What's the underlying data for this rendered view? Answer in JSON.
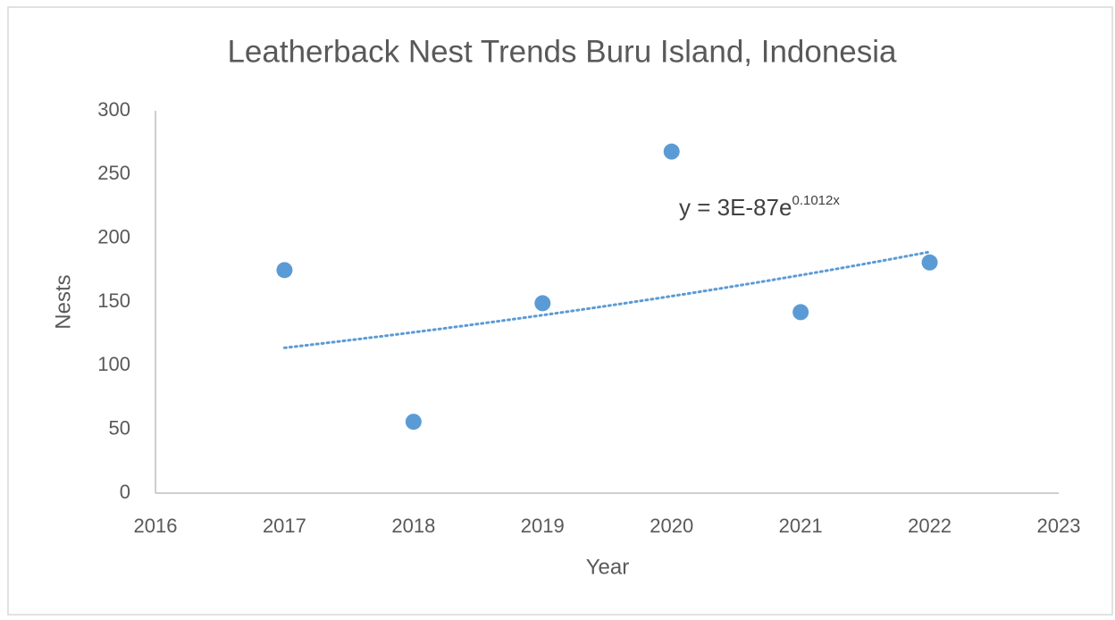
{
  "chart_data": {
    "type": "scatter",
    "title": "Leatherback Nest Trends Buru Island, Indonesia",
    "x_label": "Year",
    "y_label": "Nests",
    "series": [
      {
        "name": "Nests",
        "color": "#5b9bd5",
        "x": [
          2017,
          2018,
          2019,
          2020,
          2021,
          2022
        ],
        "values": [
          175,
          56,
          149,
          268,
          142,
          181
        ]
      }
    ],
    "trendline": {
      "type": "exponential",
      "color": "#5b9bd5",
      "equation": "y = 3E-87e",
      "exponent": "0.1012x"
    },
    "xlim": [
      2016,
      2023
    ],
    "xticks": [
      2016,
      2017,
      2018,
      2019,
      2020,
      2021,
      2022,
      2023
    ],
    "ylim": [
      0,
      300
    ],
    "yticks": [
      0,
      50,
      100,
      150,
      200,
      250,
      300
    ],
    "grid": false
  }
}
